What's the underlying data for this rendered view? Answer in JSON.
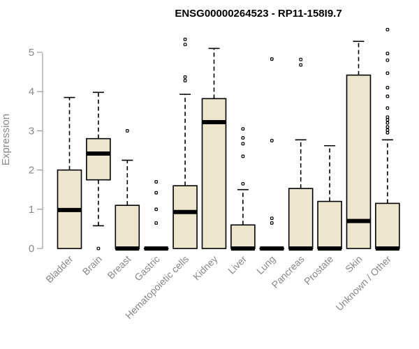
{
  "chart_data": {
    "type": "boxplot",
    "title": "ENSG00000264523 - RP11-158I9.7",
    "xlabel": "",
    "ylabel": "Expression",
    "ylim": [
      0,
      5.6
    ],
    "yticks": [
      0,
      1,
      2,
      3,
      4,
      5
    ],
    "box_fill": "#ede6cc",
    "categories": [
      "Bladder",
      "Brain",
      "Breast",
      "Gastric",
      "Hematopoietic cells",
      "Kidney",
      "Liver",
      "Lung",
      "Pancreas",
      "Prostate",
      "Skin",
      "Unknown / Other"
    ],
    "boxes": [
      {
        "q1": 0,
        "median": 0.98,
        "q3": 2.0,
        "whisker_low": 0,
        "whisker_high": 3.85,
        "outliers": []
      },
      {
        "q1": 1.75,
        "median": 2.42,
        "q3": 2.8,
        "whisker_low": 0.58,
        "whisker_high": 3.98,
        "outliers": [
          0
        ]
      },
      {
        "q1": 0,
        "median": 0,
        "q3": 1.1,
        "whisker_low": 0,
        "whisker_high": 2.25,
        "outliers": [
          3.0
        ]
      },
      {
        "q1": 0,
        "median": 0,
        "q3": 0,
        "whisker_low": 0,
        "whisker_high": 0,
        "outliers": [
          0.65,
          1.0,
          1.42,
          1.7
        ]
      },
      {
        "q1": 0,
        "median": 0.93,
        "q3": 1.6,
        "whisker_low": 0,
        "whisker_high": 3.93,
        "outliers": [
          4.28,
          4.37,
          5.2,
          5.33
        ]
      },
      {
        "q1": 0,
        "median": 3.22,
        "q3": 3.82,
        "whisker_low": 0,
        "whisker_high": 5.1,
        "outliers": []
      },
      {
        "q1": 0,
        "median": 0,
        "q3": 0.6,
        "whisker_low": 0,
        "whisker_high": 1.5,
        "outliers": [
          1.65,
          2.35,
          2.67,
          2.82,
          3.05
        ]
      },
      {
        "q1": 0,
        "median": 0,
        "q3": 0,
        "whisker_low": 0,
        "whisker_high": 0,
        "outliers": [
          0.65,
          0.77,
          2.75,
          4.83
        ]
      },
      {
        "q1": 0,
        "median": 0,
        "q3": 1.53,
        "whisker_low": 0,
        "whisker_high": 2.77,
        "outliers": [
          4.68,
          4.82
        ]
      },
      {
        "q1": 0,
        "median": 0,
        "q3": 1.2,
        "whisker_low": 0,
        "whisker_high": 2.62,
        "outliers": []
      },
      {
        "q1": 0,
        "median": 0.7,
        "q3": 4.42,
        "whisker_low": 0,
        "whisker_high": 5.28,
        "outliers": []
      },
      {
        "q1": 0,
        "median": 0,
        "q3": 1.15,
        "whisker_low": 0,
        "whisker_high": 2.77,
        "outliers": [
          2.95,
          3.02,
          3.1,
          3.2,
          3.28,
          3.35,
          3.58,
          3.88,
          4.1,
          4.47,
          4.8,
          4.97,
          5.58
        ]
      }
    ]
  }
}
